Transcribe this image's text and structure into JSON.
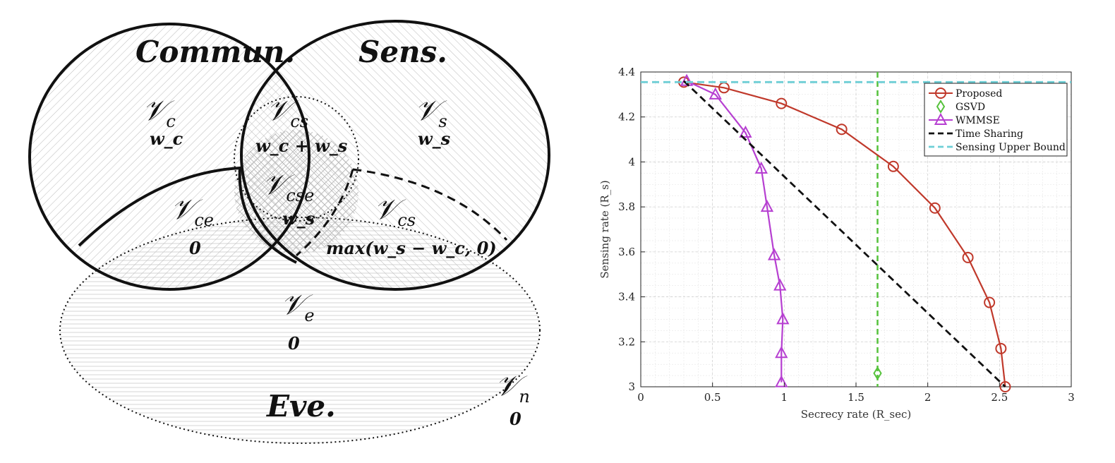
{
  "venn": {
    "labels": {
      "commun": "Commun.",
      "sens": "Sens.",
      "eve": "Eve."
    },
    "regions": {
      "c": {
        "symbol": "𝒱",
        "sub": "c",
        "weight": "w_c"
      },
      "cs": {
        "symbol": "𝒱",
        "sub": "cs",
        "weight": "w_c + w_s"
      },
      "s": {
        "symbol": "𝒱",
        "sub": "s",
        "weight": "w_s"
      },
      "ce": {
        "symbol": "𝒱",
        "sub": "ce",
        "weight": "0"
      },
      "cse": {
        "symbol": "𝒱",
        "sub": "cse",
        "weight": "w_s"
      },
      "cs2": {
        "symbol": "𝒱",
        "sub": "cs",
        "weight": "max(w_s − w_c, 0)"
      },
      "e": {
        "symbol": "𝒱",
        "sub": "e",
        "weight": "0"
      },
      "n": {
        "symbol": "𝒱",
        "sub": "n",
        "weight": "0"
      }
    }
  },
  "chart_data": {
    "type": "line",
    "xlabel": "Secrecy rate (R_sec)",
    "ylabel": "Sensing rate (R_s)",
    "xlim": [
      0,
      3
    ],
    "ylim": [
      3,
      4.4
    ],
    "xticks": [
      "0",
      "0.5",
      "1",
      "1.5",
      "2",
      "2.5",
      "3"
    ],
    "xtick_values": [
      0,
      0.5,
      1,
      1.5,
      2,
      2.5,
      3
    ],
    "yticks": [
      "3",
      "3.2",
      "3.4",
      "3.6",
      "3.8",
      "4",
      "4.2",
      "4.4"
    ],
    "ytick_values": [
      3,
      3.2,
      3.4,
      3.6,
      3.8,
      4,
      4.2,
      4.4
    ],
    "grid": true,
    "legend_position": "top-right",
    "series": [
      {
        "name": "Proposed",
        "color": "#c0392b",
        "marker": "circle",
        "style": "solid",
        "x": [
          0.3,
          0.58,
          0.98,
          1.4,
          1.76,
          2.05,
          2.28,
          2.43,
          2.51,
          2.54
        ],
        "y": [
          4.355,
          4.33,
          4.26,
          4.145,
          3.98,
          3.795,
          3.575,
          3.375,
          3.17,
          3.0
        ]
      },
      {
        "name": "GSVD",
        "color": "#55c23b",
        "marker": "diamond",
        "style": "none",
        "x": [
          1.65
        ],
        "y": [
          3.06
        ]
      },
      {
        "name": "WMMSE",
        "color": "#b63fd1",
        "marker": "triangle",
        "style": "solid",
        "x": [
          0.32,
          0.52,
          0.73,
          0.84,
          0.88,
          0.93,
          0.97,
          0.99,
          0.98,
          0.98
        ],
        "y": [
          4.36,
          4.3,
          4.13,
          3.97,
          3.8,
          3.585,
          3.45,
          3.3,
          3.15,
          3.02
        ]
      },
      {
        "name": "Time Sharing",
        "color": "#111111",
        "marker": "none",
        "style": "dashed",
        "x": [
          0.3,
          2.54
        ],
        "y": [
          4.36,
          3.0
        ]
      },
      {
        "name": "Sensing Upper Bound",
        "color": "#6fcfd6",
        "marker": "none",
        "style": "dashed",
        "x": [
          0,
          3
        ],
        "y": [
          4.355,
          4.355
        ]
      }
    ],
    "gsvd_vertical_line": {
      "x": 1.65,
      "color": "#55c23b"
    }
  }
}
